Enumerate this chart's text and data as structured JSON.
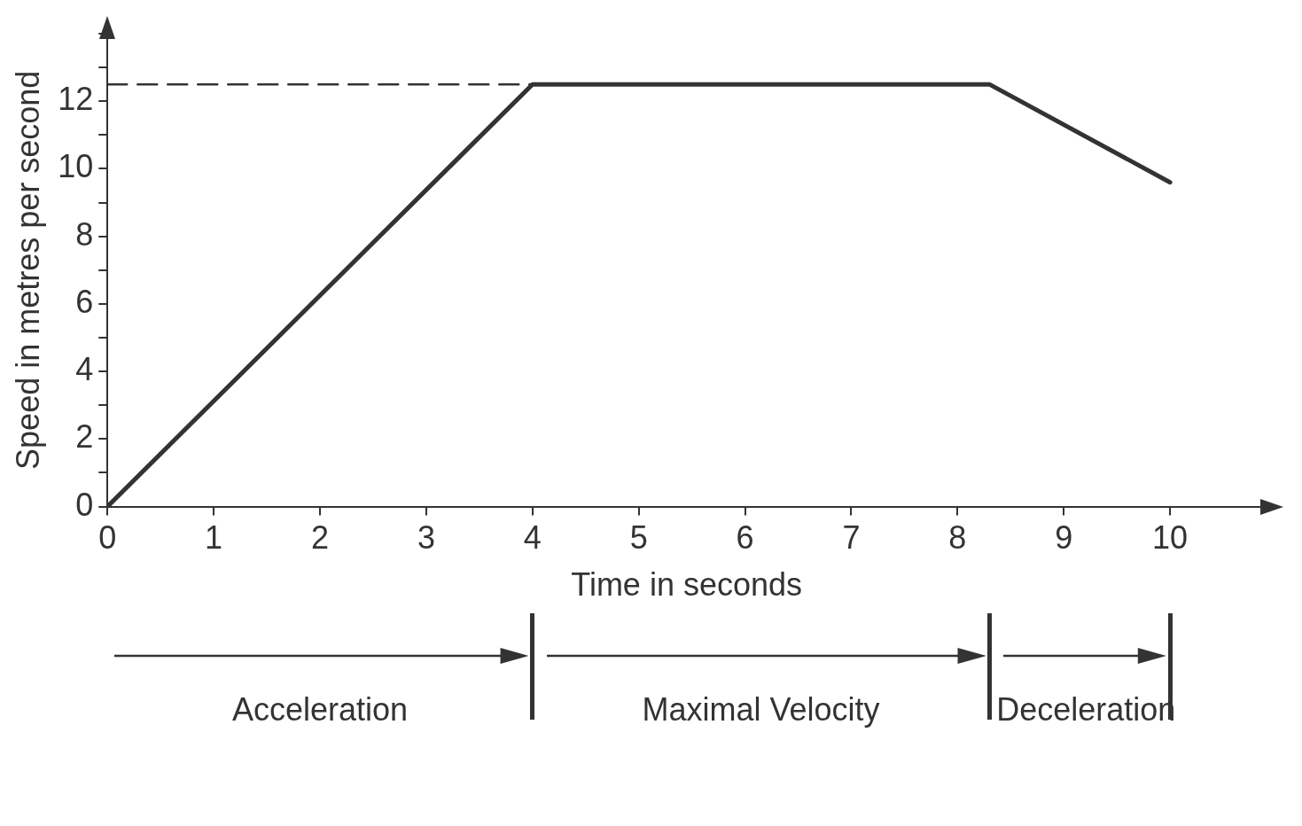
{
  "chart_data": {
    "type": "line",
    "xlabel": "Time in seconds",
    "ylabel": "Speed in metres per second",
    "xlim": [
      0,
      10.9
    ],
    "ylim": [
      0,
      14
    ],
    "xticks": [
      0,
      1,
      2,
      3,
      4,
      5,
      6,
      7,
      8,
      9,
      10
    ],
    "yticks": [
      0,
      {
        "value": 1,
        "label": null
      },
      2,
      {
        "value": 3,
        "label": null
      },
      4,
      {
        "value": 5,
        "label": null
      },
      6,
      {
        "value": 7,
        "label": null
      },
      8,
      {
        "value": 9,
        "label": null
      },
      10,
      {
        "value": 11,
        "label": null
      },
      12,
      {
        "value": 13,
        "label": null
      },
      {
        "value": 14,
        "label": null
      }
    ],
    "series": [
      {
        "color": "#333333",
        "x": [
          0,
          4,
          8.3,
          10
        ],
        "values": [
          0,
          12.5,
          12.5,
          9.6
        ],
        "line_style": "solid"
      },
      {
        "color": "#333333",
        "x": [
          0,
          4
        ],
        "values": [
          12.5,
          12.5
        ],
        "line_style": "dashed"
      }
    ],
    "annotations": [
      "Acceleration",
      "Maximal Velocity",
      "Deceleration"
    ],
    "grid": false,
    "legend": false,
    "marker": "none"
  }
}
